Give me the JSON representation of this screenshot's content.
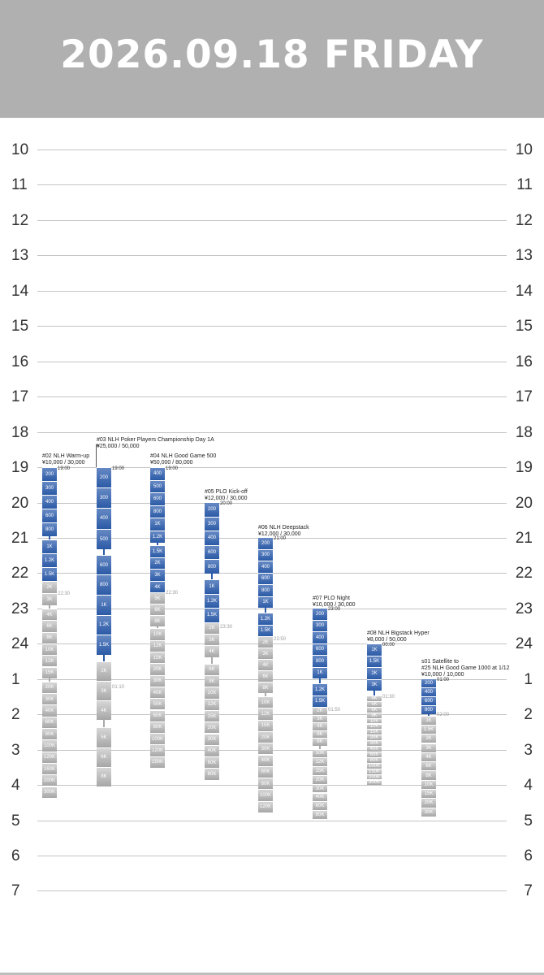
{
  "header": {
    "title": "2026.09.18 FRIDAY"
  },
  "hours": [
    "10",
    "11",
    "12",
    "13",
    "14",
    "15",
    "16",
    "17",
    "18",
    "19",
    "20",
    "21",
    "22",
    "23",
    "24",
    "1",
    "2",
    "3",
    "4",
    "5",
    "6",
    "7"
  ],
  "events": [
    {
      "title": "#02 NLH Warm-up",
      "fee": "¥10,000 / 30,000",
      "start": "19:00",
      "reg_close": "22:30",
      "levels": [
        "200",
        "300",
        "400",
        "600",
        "800",
        "1K",
        "1.2K",
        "1.5K",
        "2K",
        "3K",
        "4K",
        "6K",
        "8K",
        "10K",
        "12K",
        "15K",
        "20K",
        "30K",
        "40K",
        "60K",
        "80K",
        "100K",
        "120K",
        "160K",
        "200K",
        "300K"
      ]
    },
    {
      "title": "#03 NLH Poker Players Championship Day 1A",
      "fee": "¥25,000 / 50,000",
      "start": "19:00",
      "reg_close": "01:10",
      "levels": [
        "200",
        "300",
        "400",
        "500",
        "600",
        "800",
        "1K",
        "1.2K",
        "1.5K",
        "2K",
        "3K",
        "4K",
        "5K",
        "6K",
        "8K"
      ]
    },
    {
      "title": "#04 NLH Good Game 500",
      "fee": "¥50,000 / 80,000",
      "start": "19:00",
      "reg_close": "22:30",
      "levels": [
        "400",
        "500",
        "600",
        "800",
        "1K",
        "1.2K",
        "1.5K",
        "2K",
        "3K",
        "4K",
        "5K",
        "6K",
        "8K",
        "10K",
        "12K",
        "15K",
        "20K",
        "30K",
        "40K",
        "50K",
        "60K",
        "80K",
        "100K",
        "120K",
        "150K"
      ]
    },
    {
      "title": "#05 PLO Kick-off",
      "fee": "¥12,000 / 30,000",
      "start": "20:00",
      "reg_close": "23:30",
      "levels": [
        "200",
        "300",
        "400",
        "600",
        "800",
        "1K",
        "1.2K",
        "1.5K",
        "2K",
        "3K",
        "4K",
        "6K",
        "8K",
        "10K",
        "12K",
        "15K",
        "20K",
        "30K",
        "40K",
        "60K",
        "80K"
      ]
    },
    {
      "title": "#06 NLH Deepstack",
      "fee": "¥12,000 / 30,000",
      "start": "21:00",
      "reg_close": "23:50",
      "levels": [
        "200",
        "300",
        "400",
        "600",
        "800",
        "1K",
        "1.2K",
        "1.5K",
        "2K",
        "3K",
        "4K",
        "6K",
        "8K",
        "10K",
        "12K",
        "15K",
        "20K",
        "30K",
        "40K",
        "60K",
        "80K",
        "100K",
        "120K"
      ]
    },
    {
      "title": "#07 PLO Night",
      "fee": "¥10,000 / 30,000",
      "start": "23:00",
      "reg_close": "01:50",
      "levels": [
        "200",
        "300",
        "400",
        "600",
        "800",
        "1K",
        "1.2K",
        "1.5K",
        "2K",
        "3K",
        "4K",
        "6K",
        "8K",
        "10K",
        "12K",
        "15K",
        "20K",
        "30K",
        "40K",
        "60K",
        "80K"
      ]
    },
    {
      "title": "#08 NLH Bigstack Hyper",
      "fee": "¥8,000 / 50,000",
      "start": "00:00",
      "reg_close": "01:30",
      "levels": [
        "1K",
        "1.5K",
        "2K",
        "3K",
        "4K",
        "5K",
        "6K",
        "8K",
        "10K",
        "12K",
        "15K",
        "20K",
        "30K",
        "40K",
        "60K",
        "80K",
        "100K",
        "150K",
        "200K",
        "300K"
      ]
    },
    {
      "title": "s01 Satellite to",
      "title2": "#25 NLH Good Game 1000 at 1/12",
      "fee": "¥10,000 / 10,000",
      "start": "01:00",
      "reg_close": "02:00",
      "levels": [
        "200",
        "400",
        "600",
        "800",
        "1K",
        "1.5K",
        "2K",
        "3K",
        "4K",
        "6K",
        "8K",
        "10K",
        "15K",
        "20K",
        "30K"
      ]
    }
  ],
  "colors": {
    "header_bg": "#b0b0b0",
    "level_blue": "#2b5aa6",
    "level_gray": "#a6a6a6"
  }
}
